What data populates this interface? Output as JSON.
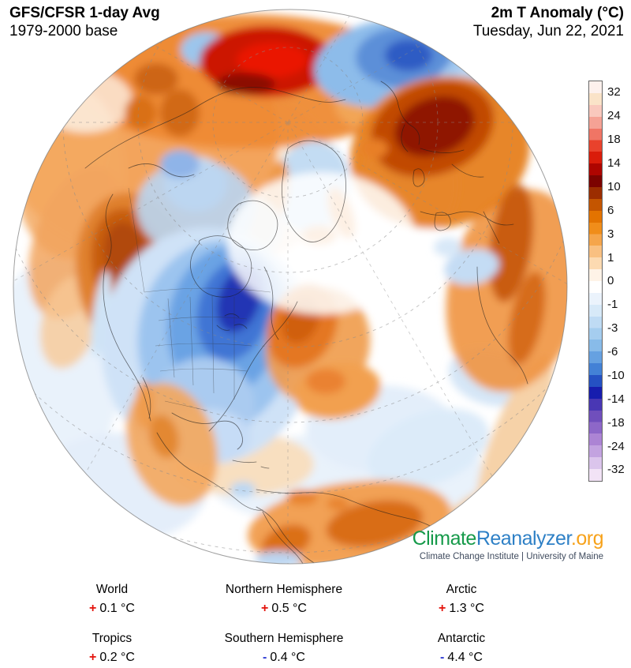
{
  "header": {
    "left": {
      "line1": "GFS/CFSR 1-day Avg",
      "line2": "1979-2000 base"
    },
    "right": {
      "line1": "2m T Anomaly (°C)",
      "line2": "Tuesday, Jun 22, 2021"
    }
  },
  "colorbar": {
    "labels": [
      "32",
      "24",
      "18",
      "14",
      "10",
      "6",
      "3",
      "1",
      "0",
      "-1",
      "-3",
      "-6",
      "-10",
      "-14",
      "-18",
      "-24",
      "-32"
    ],
    "segments": [
      [
        "#fdf1ed",
        "#fae3c8"
      ],
      [
        "#f9c8bd",
        "#f5a295"
      ],
      [
        "#f07565",
        "#e9422c"
      ],
      [
        "#da1c0a",
        "#ae0500"
      ],
      [
        "#7c0300",
        "#9c2d00"
      ],
      [
        "#c45500",
        "#e37300"
      ],
      [
        "#f08d1a",
        "#f5a54b"
      ],
      [
        "#f9c081",
        "#fcdab1"
      ],
      [
        "#fef3e7",
        "#ffffff"
      ],
      [
        "#ebf3fc",
        "#d7e9f8"
      ],
      [
        "#bfdbf4",
        "#a5cdef"
      ],
      [
        "#88bbe9",
        "#66a1e1"
      ],
      [
        "#4381d6",
        "#2551c3"
      ],
      [
        "#171dae",
        "#4937b4"
      ],
      [
        "#704fbc",
        "#8d67c8"
      ],
      [
        "#ac84d4",
        "#c3a3e0"
      ],
      [
        "#dbc5ec",
        "#f2e3f6"
      ]
    ]
  },
  "logo": {
    "part1": "Climate",
    "part2": "Reanalyzer",
    "part3": ".org",
    "subtitle": "Climate Change Institute | University of Maine",
    "colors": {
      "climate": "#169a4a",
      "reanalyzer": "#2e80c6",
      "org": "#f7a21a"
    }
  },
  "stats": [
    {
      "label": "World",
      "sign": "+",
      "value": "0.1 °C"
    },
    {
      "label": "Northern Hemisphere",
      "sign": "+",
      "value": "0.5 °C"
    },
    {
      "label": "Arctic",
      "sign": "+",
      "value": "1.3 °C"
    },
    {
      "label": "Tropics",
      "sign": "+",
      "value": "0.2 °C"
    },
    {
      "label": "Southern Hemisphere",
      "sign": "-",
      "value": "0.4 °C"
    },
    {
      "label": "Antarctic",
      "sign": "-",
      "value": "4.4 °C"
    }
  ],
  "colors": {
    "positive_sign": "#e3120b",
    "negative_sign": "#2f3bd3",
    "warm_anomaly": "#e37300",
    "cold_anomaly": "#2551c3",
    "extreme_warm": "#7c0300",
    "extreme_cold": "#171dae"
  },
  "chart_data": {
    "type": "heatmap",
    "title": "2m T Anomaly (°C)",
    "model": "GFS/CFSR 1-day Avg",
    "baseline": "1979-2000 base",
    "date": "Tuesday, Jun 22, 2021",
    "units": "°C",
    "projection": "orthographic globe centered on North America / North Atlantic",
    "scale_ticks": [
      32,
      24,
      18,
      14,
      10,
      6,
      3,
      1,
      0,
      -1,
      -3,
      -6,
      -10,
      -14,
      -18,
      -24,
      -32
    ],
    "region_anomalies": {
      "World": 0.1,
      "Northern Hemisphere": 0.5,
      "Arctic": 1.3,
      "Tropics": 0.2,
      "Southern Hemisphere": -0.4,
      "Antarctic": -4.4
    },
    "notable_features": [
      "deep red warm anomaly (+10 to +18) over Kara Sea / Taymyr in northern Siberia",
      "dark red warm anomaly (+6 to +14) over western Russia and eastern Europe",
      "cold anomaly (-3 to -10) over Scandinavia / Barents region",
      "strong cold anomaly (-6 to -14) over Great Lakes, Quebec and central-eastern USA",
      "warm anomaly (+3 to +10) over Pacific Northwest and western North America",
      "warm anomaly over Newfoundland / Labrador and the northwest Atlantic",
      "warm anomaly (+1 to +6) across Brazil and central South America",
      "near-neutral white region around the central Arctic Ocean"
    ]
  }
}
